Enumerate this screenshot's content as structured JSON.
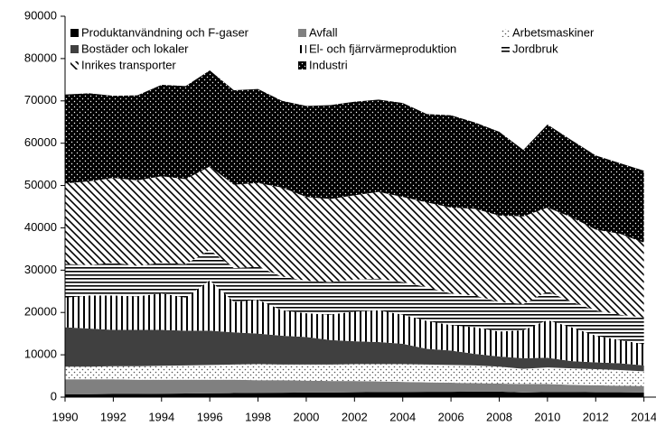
{
  "chart_data": {
    "type": "stacked_area",
    "x": [
      1990,
      1991,
      1992,
      1993,
      1994,
      1995,
      1996,
      1997,
      1998,
      1999,
      2000,
      2001,
      2002,
      2003,
      2004,
      2005,
      2006,
      2007,
      2008,
      2009,
      2010,
      2011,
      2012,
      2013,
      2014
    ],
    "xlim": [
      1990,
      2014.5
    ],
    "xticks": [
      1990,
      1992,
      1994,
      1996,
      1998,
      2000,
      2002,
      2004,
      2006,
      2008,
      2010,
      2012,
      2014
    ],
    "ylim": [
      0,
      90000
    ],
    "yticks": [
      0,
      10000,
      20000,
      30000,
      40000,
      50000,
      60000,
      70000,
      80000,
      90000
    ],
    "series": [
      {
        "name": "Produktanvändning och F-gaser",
        "color": "#000000",
        "pattern": "solid",
        "values": [
          700,
          700,
          750,
          750,
          800,
          850,
          900,
          950,
          1000,
          1050,
          1100,
          1100,
          1150,
          1200,
          1200,
          1250,
          1250,
          1300,
          1300,
          1100,
          1200,
          1200,
          1150,
          1150,
          1100
        ]
      },
      {
        "name": "Avfall",
        "color": "#808080",
        "pattern": "solid",
        "values": [
          3500,
          3500,
          3450,
          3350,
          3300,
          3250,
          3200,
          3150,
          3000,
          2950,
          2800,
          2700,
          2650,
          2500,
          2400,
          2250,
          2150,
          2000,
          1900,
          2000,
          1900,
          1700,
          1650,
          1550,
          1500
        ]
      },
      {
        "name": "Arbetsmaskiner",
        "color": "#555555",
        "pattern": "dots",
        "values": [
          3000,
          3000,
          3100,
          3200,
          3300,
          3400,
          3500,
          3600,
          3800,
          3700,
          3800,
          3900,
          4000,
          4100,
          4200,
          4200,
          4200,
          4200,
          4000,
          3600,
          3900,
          3900,
          3800,
          3700,
          3500
        ]
      },
      {
        "name": "Bostäder och lokaler",
        "color": "#404040",
        "pattern": "solid",
        "values": [
          9300,
          9000,
          8600,
          8600,
          8500,
          8200,
          8100,
          7600,
          7200,
          6800,
          6500,
          5800,
          5400,
          5200,
          4800,
          3700,
          3400,
          2700,
          2400,
          2500,
          2300,
          1700,
          1600,
          1600,
          1400
        ]
      },
      {
        "name": "El- och fjärrvärmeproduktion",
        "color": "#000000",
        "pattern": "vertical",
        "values": [
          7000,
          7800,
          8100,
          7900,
          8600,
          7800,
          11900,
          7200,
          8000,
          6000,
          5600,
          6000,
          7000,
          7500,
          6900,
          6600,
          6000,
          6300,
          5900,
          6600,
          8900,
          8000,
          6300,
          5500,
          5000
        ]
      },
      {
        "name": "Jordbruk",
        "color": "#000000",
        "pattern": "horizontal",
        "values": [
          8000,
          7200,
          7800,
          7200,
          7300,
          7900,
          7200,
          8000,
          7800,
          8000,
          7700,
          7700,
          7600,
          7500,
          7700,
          8000,
          7500,
          7500,
          7000,
          6200,
          6800,
          6000,
          6000,
          6000,
          6300
        ]
      },
      {
        "name": "Inrikes transporter",
        "color": "#000000",
        "pattern": "diagonal",
        "values": [
          19000,
          19800,
          20000,
          20200,
          20400,
          20100,
          19700,
          19700,
          19800,
          21000,
          19800,
          19600,
          19900,
          20500,
          20100,
          20000,
          20300,
          20500,
          20400,
          20700,
          19800,
          20000,
          19100,
          19100,
          17700
        ]
      },
      {
        "name": "Industri",
        "color": "#000000",
        "pattern": "dark-dots",
        "values": [
          21000,
          20800,
          19400,
          20100,
          21600,
          22000,
          22700,
          22300,
          22200,
          20500,
          21500,
          22200,
          22100,
          21800,
          22200,
          20900,
          21800,
          20400,
          19800,
          15700,
          19600,
          18200,
          17500,
          16700,
          17000
        ]
      }
    ]
  }
}
